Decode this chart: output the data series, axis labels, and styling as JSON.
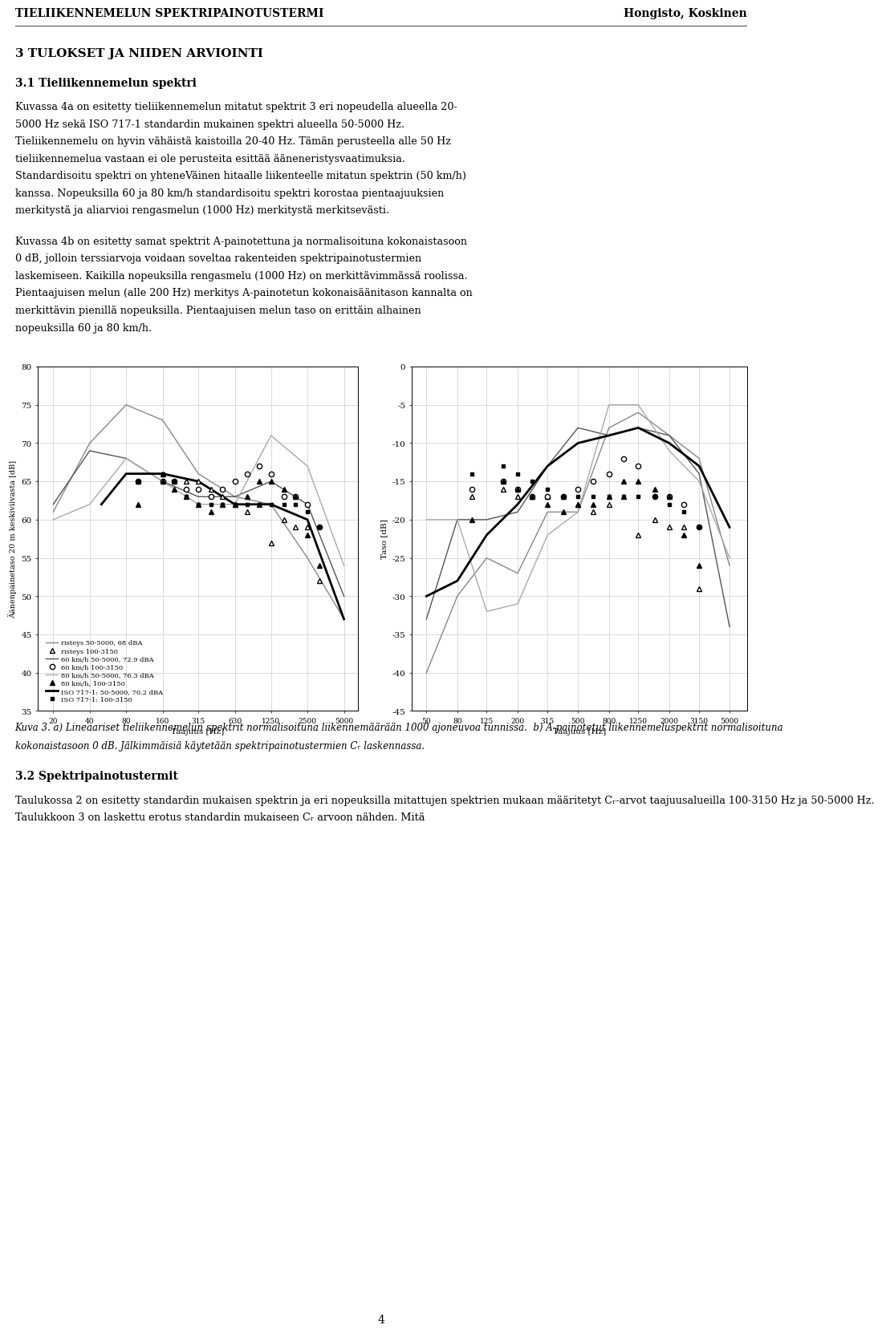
{
  "header_left": "TIELIIKENNEMELUN SPEKTRIPAINOTUSTERMI",
  "header_right": "Hongisto, Koskinen",
  "section_31_title": "3 TULOKSET JA NIIDEN ARVIOINTI",
  "section_31_subtitle": "3.1 Tieliikennemelun spektri",
  "para1_lines": [
    "Kuvassa 4a on esitetty tieliikennemelun mitatut spektrit 3 eri nopeudella alueella 20-",
    "5000 Hz sekä ISO 717-1 standardin mukainen spektri alueella 50-5000 Hz.",
    "Tieliikennemelu on hyvin vähäistä kaistoilla 20-40 Hz. Tämän perusteella alle 50 Hz",
    "tieliikennemelua vastaan ei ole perusteita esittää ääneneristysvaatimuksia.",
    "Standardisoitu spektri on yhteneVäinen hitaalle liikenteelle mitatun spektrin (50 km/h)",
    "kanssa. Nopeuksilla 60 ja 80 km/h standardisoitu spektri korostaa pientaajuuksien",
    "merkitystä ja aliarvioi rengasmelun (1000 Hz) merkitystä merkitsevästi."
  ],
  "para2_lines": [
    "Kuvassa 4b on esitetty samat spektrit A-painotettuna ja normalisoituna kokonaistasoon",
    "0 dB, jolloin terssiarvoja voidaan soveltaa rakenteiden spektripainotustermien",
    "laskemiseen. Kaikilla nopeuksilla rengasmelu (1000 Hz) on merkittävimmässä roolissa.",
    "Pientaajuisen melun (alle 200 Hz) merkitys A-painotetun kokonaisäänitason kannalta on",
    "merkittävin pienillä nopeuksilla. Pientaajuisen melun taso on erittäin alhainen",
    "nopeuksilla 60 ja 80 km/h."
  ],
  "chart1_ylabel": "Äänenpainetaso 20 m keskiviivasta [dB]",
  "chart1_ylim": [
    35,
    80
  ],
  "chart1_yticks": [
    35,
    40,
    45,
    50,
    55,
    60,
    65,
    70,
    75,
    80
  ],
  "chart1_xlabel": "Taajuus [Hz]",
  "chart1_xtick_labels": [
    "20",
    "40",
    "80",
    "160",
    "315",
    "630",
    "1250",
    "2500",
    "5000"
  ],
  "chart1_xtick_vals": [
    20,
    40,
    80,
    160,
    315,
    630,
    1250,
    2500,
    5000
  ],
  "chart2_ylabel": "Taso [dB]",
  "chart2_ylim": [
    -45,
    0
  ],
  "chart2_yticks": [
    -45,
    -40,
    -35,
    -30,
    -25,
    -20,
    -15,
    -10,
    -5,
    0
  ],
  "chart2_xlabel": "Taajuus [Hz]",
  "chart2_xtick_labels": [
    "50",
    "80",
    "125",
    "200",
    "315",
    "500",
    "800",
    "1250",
    "2000",
    "3150",
    "5000"
  ],
  "chart2_xtick_vals": [
    50,
    80,
    125,
    200,
    315,
    500,
    800,
    1250,
    2000,
    3150,
    5000
  ],
  "caption_lines": [
    "Kuva 3. a) Lineaariset tieliikennemelun spektrit normalisoituna liikennemäärään 1000 ajoneuvoa tunnissa.  b) A-painotetut liikennemeluspektrit normalisoituna",
    "kokonaistasoon 0 dB. Jälkimmäisiä käytetään spektripainotustermien Cᵣ laskennassa."
  ],
  "section_32_title": "3.2 Spektripainotustermit",
  "para3_lines": [
    "Taulukossa 2 on esitetty standardin mukaisen spektrin ja eri nopeuksilla mitattujen spektrien mukaan määritetyt Cᵣ-arvot taajuusalueilla 100-3150 Hz ja 50-5000 Hz.",
    "Taulukkoon 3 on laskettu erotus standardin mukaiseen Cᵣ arvoon nähden. Mitä"
  ],
  "page_number": "4",
  "chart1_risteys_line_x": [
    20,
    40,
    80,
    160,
    315,
    630,
    1250,
    2500,
    5000
  ],
  "chart1_risteys_line_y": [
    61,
    70,
    75,
    73,
    66,
    63,
    62,
    55,
    47
  ],
  "chart1_risteys_markers_x": [
    100,
    160,
    200,
    250,
    315,
    400,
    500,
    630,
    800,
    1000,
    1250,
    1600,
    2000,
    2500,
    3150
  ],
  "chart1_risteys_markers_y": [
    65,
    66,
    65,
    65,
    65,
    64,
    63,
    62,
    61,
    62,
    57,
    60,
    59,
    59,
    52
  ],
  "chart1_60kmh_line_x": [
    20,
    40,
    80,
    160,
    315,
    630,
    1250,
    2500,
    5000
  ],
  "chart1_60kmh_line_y": [
    62,
    69,
    68,
    65,
    63,
    63,
    65,
    62,
    50
  ],
  "chart1_60kmh_markers_x": [
    100,
    160,
    200,
    250,
    315,
    400,
    500,
    630,
    800,
    1000,
    1250,
    1600,
    2000,
    2500,
    3150
  ],
  "chart1_60kmh_markers_y": [
    65,
    65,
    65,
    64,
    64,
    63,
    64,
    65,
    66,
    67,
    66,
    63,
    63,
    62,
    59
  ],
  "chart1_80kmh_line_x": [
    20,
    40,
    80,
    160,
    315,
    630,
    1250,
    2500,
    5000
  ],
  "chart1_80kmh_line_y": [
    60,
    62,
    68,
    65,
    62,
    62,
    71,
    67,
    54
  ],
  "chart1_80kmh_markers_x": [
    100,
    160,
    200,
    250,
    315,
    400,
    500,
    630,
    800,
    1000,
    1250,
    1600,
    2000,
    2500,
    3150
  ],
  "chart1_80kmh_markers_y": [
    62,
    65,
    64,
    63,
    62,
    61,
    62,
    62,
    63,
    65,
    65,
    64,
    63,
    58,
    54
  ],
  "chart1_iso_line_x": [
    50,
    80,
    160,
    315,
    630,
    1250,
    2500,
    5000
  ],
  "chart1_iso_line_y": [
    62,
    66,
    66,
    65,
    62,
    62,
    60,
    47
  ],
  "chart1_iso_markers_x": [
    100,
    160,
    200,
    250,
    315,
    400,
    500,
    630,
    800,
    1000,
    1250,
    1600,
    2000,
    2500,
    3150
  ],
  "chart1_iso_markers_y": [
    65,
    66,
    65,
    63,
    62,
    62,
    62,
    62,
    62,
    62,
    62,
    62,
    62,
    61,
    59
  ],
  "chart2_risteys_line_x": [
    50,
    80,
    125,
    200,
    315,
    500,
    800,
    1250,
    2000,
    3150,
    5000
  ],
  "chart2_risteys_line_y": [
    -40,
    -30,
    -25,
    -27,
    -19,
    -19,
    -8,
    -6,
    -9,
    -12,
    -26
  ],
  "chart2_risteys_markers_x": [
    100,
    160,
    200,
    250,
    315,
    400,
    500,
    630,
    800,
    1000,
    1250,
    1600,
    2000,
    2500,
    3150
  ],
  "chart2_risteys_markers_y": [
    -17,
    -16,
    -17,
    -17,
    -17,
    -17,
    -18,
    -19,
    -18,
    -17,
    -22,
    -20,
    -21,
    -21,
    -29
  ],
  "chart2_60kmh_line_x": [
    50,
    80,
    125,
    200,
    315,
    500,
    800,
    1250,
    2000,
    3150,
    5000
  ],
  "chart2_60kmh_line_y": [
    -33,
    -20,
    -20,
    -19,
    -13,
    -8,
    -9,
    -8,
    -9,
    -14,
    -34
  ],
  "chart2_60kmh_markers_x": [
    100,
    160,
    200,
    250,
    315,
    400,
    500,
    630,
    800,
    1000,
    1250,
    1600,
    2000,
    2500,
    3150
  ],
  "chart2_60kmh_markers_y": [
    -16,
    -15,
    -16,
    -17,
    -17,
    -17,
    -16,
    -15,
    -14,
    -12,
    -13,
    -17,
    -17,
    -18,
    -21
  ],
  "chart2_80kmh_line_x": [
    50,
    80,
    125,
    200,
    315,
    500,
    800,
    1250,
    2000,
    3150,
    5000
  ],
  "chart2_80kmh_line_y": [
    -20,
    -20,
    -32,
    -31,
    -22,
    -19,
    -5,
    -5,
    -11,
    -15,
    -25
  ],
  "chart2_80kmh_markers_x": [
    100,
    160,
    200,
    250,
    315,
    400,
    500,
    630,
    800,
    1000,
    1250,
    1600,
    2000,
    2500,
    3150
  ],
  "chart2_80kmh_markers_y": [
    -20,
    -15,
    -16,
    -17,
    -18,
    -19,
    -18,
    -18,
    -17,
    -15,
    -15,
    -16,
    -17,
    -22,
    -26
  ],
  "chart2_iso_line_x": [
    50,
    80,
    125,
    200,
    315,
    500,
    800,
    1250,
    2000,
    3150,
    5000
  ],
  "chart2_iso_line_y": [
    -30,
    -28,
    -22,
    -18,
    -13,
    -10,
    -9,
    -8,
    -10,
    -13,
    -21
  ],
  "chart2_iso_markers_x": [
    100,
    160,
    200,
    250,
    315,
    400,
    500,
    630,
    800,
    1000,
    1250,
    1600,
    2000,
    2500,
    3150
  ],
  "chart2_iso_markers_y": [
    -14,
    -13,
    -14,
    -15,
    -16,
    -17,
    -17,
    -17,
    -17,
    -17,
    -17,
    -17,
    -18,
    -19,
    -21
  ]
}
